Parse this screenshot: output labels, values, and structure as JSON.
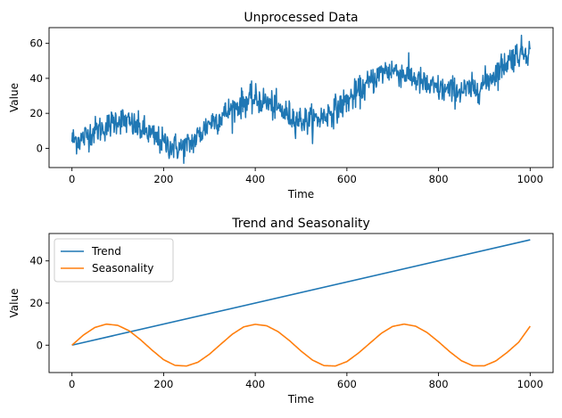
{
  "chart_data": [
    {
      "type": "line",
      "title": "Unprocessed Data",
      "xlabel": "Time",
      "ylabel": "Value",
      "xlim": [
        -50,
        1050
      ],
      "ylim": [
        -11,
        69
      ],
      "xticks": [
        0,
        200,
        400,
        600,
        800,
        1000
      ],
      "yticks": [
        0,
        20,
        40,
        60
      ],
      "series": [
        {
          "color": "#1f77b4",
          "x": [
            0,
            20,
            40,
            60,
            80,
            100,
            120,
            140,
            160,
            180,
            200,
            220,
            240,
            260,
            280,
            300,
            320,
            340,
            360,
            380,
            400,
            420,
            440,
            460,
            480,
            500,
            520,
            540,
            560,
            580,
            600,
            620,
            640,
            660,
            680,
            700,
            720,
            740,
            760,
            780,
            800,
            820,
            840,
            860,
            880,
            900,
            920,
            940,
            960,
            980,
            1000
          ],
          "y": [
            5,
            5,
            9,
            11,
            13,
            17,
            15,
            12,
            10,
            6,
            3,
            1,
            0,
            3,
            8,
            15,
            17,
            21,
            24,
            27,
            28,
            27,
            24,
            21,
            18,
            16,
            16,
            17,
            20,
            23,
            27,
            31,
            35,
            40,
            44,
            45,
            43,
            41,
            38,
            35,
            34,
            33,
            33,
            33,
            34,
            37,
            42,
            47,
            52,
            55,
            56
          ],
          "noise": 4
        }
      ]
    },
    {
      "type": "line",
      "title": "Trend and Seasonality",
      "xlabel": "Time",
      "ylabel": "Value",
      "xlim": [
        -50,
        1050
      ],
      "ylim": [
        -13,
        53
      ],
      "xticks": [
        0,
        200,
        400,
        600,
        800,
        1000
      ],
      "yticks": [
        0,
        20,
        40
      ],
      "legend": "top-left",
      "series": [
        {
          "name": "Trend",
          "color": "#1f77b4",
          "x": [
            0,
            1000
          ],
          "y": [
            0,
            50
          ]
        },
        {
          "name": "Seasonality",
          "color": "#ff7f0e",
          "x": [
            0,
            25,
            50,
            75,
            100,
            125,
            150,
            175,
            200,
            225,
            250,
            275,
            300,
            325,
            350,
            375,
            400,
            425,
            450,
            475,
            500,
            525,
            550,
            575,
            600,
            625,
            650,
            675,
            700,
            725,
            750,
            775,
            800,
            825,
            850,
            875,
            900,
            925,
            950,
            975,
            1000
          ],
          "y": [
            0,
            4.8,
            8.4,
            10,
            9.4,
            6.8,
            2.5,
            -2.4,
            -6.9,
            -9.6,
            -9.9,
            -8.1,
            -4.3,
            0.5,
            5.2,
            8.7,
            9.9,
            9.2,
            6.4,
            2.1,
            -2.8,
            -7.1,
            -9.7,
            -9.9,
            -7.8,
            -3.8,
            0.9,
            5.6,
            8.9,
            10,
            9,
            6,
            1.6,
            -3.2,
            -7.4,
            -9.8,
            -9.8,
            -7.5,
            -3.4,
            1.4,
            9
          ]
        }
      ]
    }
  ]
}
